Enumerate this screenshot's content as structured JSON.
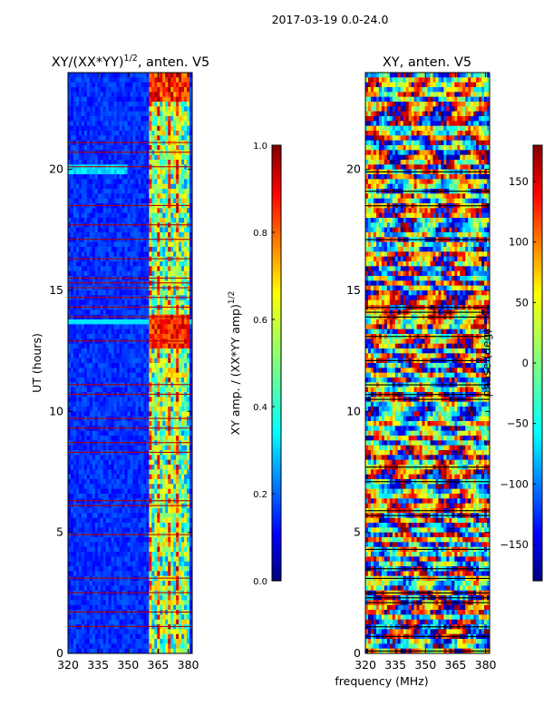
{
  "suptitle": "2017-03-19 0.0-24.0",
  "xlabel": "frequency (MHz)",
  "colors": {
    "jet": [
      "#00007f",
      "#0000ff",
      "#007fff",
      "#00ffff",
      "#7fff7f",
      "#ffff00",
      "#ff7f00",
      "#ff0000",
      "#7f0000"
    ],
    "stripe": "#b00000",
    "gap": "#000000"
  },
  "chart_data": [
    {
      "type": "heatmap",
      "title_base": "XY/(XX*YY)",
      "title_sup": "1/2",
      "title_suffix": ", anten. V5",
      "xlabel": "",
      "ylabel": "UT (hours)",
      "x_ticks": [
        320,
        335,
        350,
        365,
        380
      ],
      "xlim": [
        320,
        382
      ],
      "y_ticks": [
        0,
        5,
        10,
        15,
        20
      ],
      "ylim": [
        0,
        24
      ],
      "colorbar": {
        "label_base": "XY amp. / (XX*YY amp)",
        "label_sup": "1/2",
        "range": [
          0.0,
          1.0
        ],
        "ticks": [
          "0.0",
          "0.2",
          "0.4",
          "0.6",
          "0.8",
          "1.0"
        ]
      },
      "notable_features": {
        "high_amplitude_band_MHz": [
          360,
          381
        ],
        "cyan_bright_rows_hours": [
          13.7,
          12.6
        ],
        "light_blue_row_hours": 20.0
      }
    },
    {
      "type": "heatmap",
      "title": "XY, anten. V5",
      "xlabel": "frequency (MHz)",
      "ylabel": "",
      "x_ticks": [
        320,
        335,
        350,
        365,
        380
      ],
      "xlim": [
        320,
        382
      ],
      "y_ticks": [
        0,
        5,
        10,
        15,
        20
      ],
      "ylim": [
        0,
        24
      ],
      "colorbar": {
        "label": "phase (deg)",
        "range": [
          -180,
          180
        ],
        "ticks": [
          "−150",
          "−100",
          "−50",
          "0",
          "50",
          "100",
          "150"
        ]
      }
    }
  ]
}
